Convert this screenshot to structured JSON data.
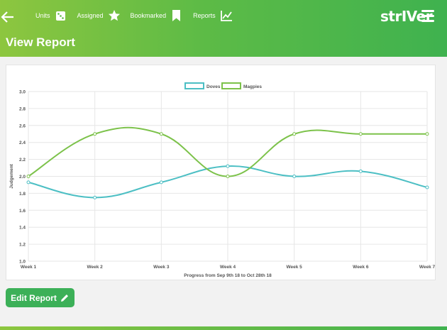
{
  "header": {
    "nav": [
      {
        "label": "Units",
        "icon": "dice-icon"
      },
      {
        "label": "Assigned",
        "icon": "star-icon"
      },
      {
        "label": "Bookmarked",
        "icon": "bookmark-icon"
      },
      {
        "label": "Reports",
        "icon": "line-chart-icon"
      }
    ],
    "brand": "strIVer",
    "page_title": "View Report"
  },
  "edit_button_label": "Edit Report",
  "colors": {
    "doves": "#4cbfc4",
    "magpies": "#7cc24a",
    "button": "#3cb058"
  },
  "chart_data": {
    "type": "line",
    "categories": [
      "Week 1",
      "Week 2",
      "Week 3",
      "Week 4",
      "Week 5",
      "Week 6",
      "Week 7"
    ],
    "series": [
      {
        "name": "Doves",
        "values": [
          1.93,
          1.75,
          1.93,
          2.12,
          2.0,
          2.06,
          1.87
        ]
      },
      {
        "name": "Magpies",
        "values": [
          2.0,
          2.5,
          2.5,
          2.0,
          2.5,
          2.5,
          2.5
        ]
      }
    ],
    "xlabel": "Progress from Sep 9th 18 to Oct 28th 18",
    "ylabel": "Judgement",
    "ylim": [
      1.0,
      3.0
    ],
    "yticks": [
      "1.0",
      "1.2",
      "1.4",
      "1.6",
      "1.8",
      "2.0",
      "2.2",
      "2.4",
      "2.6",
      "2.8",
      "3.0"
    ],
    "legend_position": "top",
    "grid": true
  }
}
